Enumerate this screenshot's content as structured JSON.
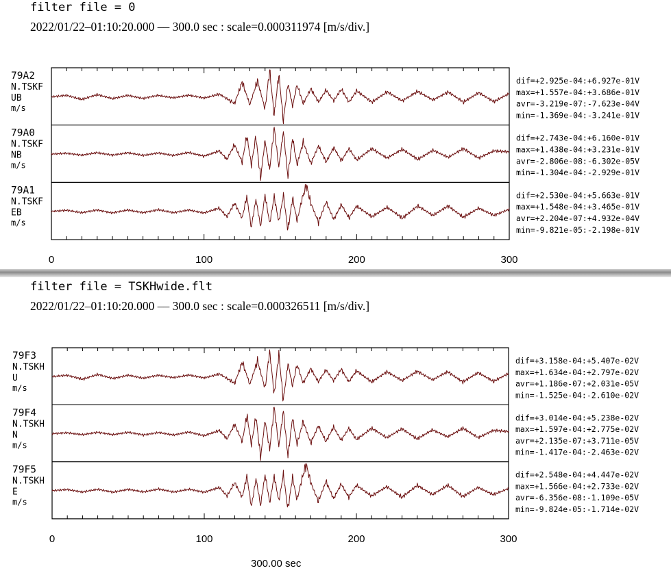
{
  "panels": [
    {
      "filter_text": "filter file = 0",
      "info_text": "2022/01/22–01:10:20.000 –– 300.0 sec : scale=0.000311974 [m/s/div.]"
    },
    {
      "filter_text": "filter file = TSKHwide.flt",
      "info_text": "2022/01/22–01:10:20.000 –– 300.0 sec : scale=0.000326511 [m/s/div.]"
    }
  ],
  "footer_text": "300.00 sec",
  "colors": {
    "trace": "#6b0f0f",
    "frame": "#000000"
  },
  "chart_data": [
    {
      "type": "line",
      "title": "filter file = 0",
      "xlim": [
        0,
        300
      ],
      "x_ticks": [
        "0",
        "100",
        "200",
        "300"
      ],
      "grid": false,
      "channels": [
        {
          "code": "79A2",
          "station": "N.TSKF",
          "component": "UB",
          "unit": "m/s",
          "stats": [
            "dif=+2.925e-04:+6.927e-01V",
            "max=+1.557e-04:+3.686e-01V",
            "avr=-3.219e-07:-7.623e-04V",
            "min=-1.369e-04:-3.241e-01V"
          ],
          "x": [
            0,
            10,
            20,
            30,
            40,
            50,
            60,
            70,
            80,
            90,
            100,
            110,
            120,
            125,
            130,
            135,
            140,
            143,
            146,
            149,
            152,
            155,
            158,
            161,
            165,
            170,
            175,
            180,
            185,
            190,
            195,
            200,
            210,
            220,
            230,
            240,
            250,
            260,
            270,
            280,
            290,
            300
          ],
          "y": [
            0,
            0.05,
            -0.1,
            0.08,
            -0.07,
            0.05,
            -0.06,
            0.05,
            -0.04,
            0.06,
            -0.05,
            0.1,
            -0.25,
            0.55,
            -0.3,
            0.6,
            -0.45,
            1.0,
            -0.7,
            0.85,
            -0.9,
            0.5,
            -0.35,
            0.45,
            -0.25,
            0.3,
            -0.2,
            0.25,
            -0.15,
            0.28,
            -0.2,
            0.22,
            -0.2,
            0.18,
            -0.15,
            0.2,
            -0.12,
            0.18,
            -0.2,
            0.15,
            -0.18,
            0.12
          ]
        },
        {
          "code": "79A0",
          "station": "N.TSKF",
          "component": "NB",
          "unit": "m/s",
          "stats": [
            "dif=+2.743e-04:+6.160e-01V",
            "max=+1.438e-04:+3.231e-01V",
            "avr=-2.806e-08:-6.302e-05V",
            "min=-1.304e-04:-2.929e-01V"
          ],
          "x": [
            0,
            10,
            20,
            30,
            40,
            50,
            60,
            70,
            80,
            90,
            100,
            110,
            115,
            120,
            125,
            128,
            131,
            134,
            137,
            140,
            143,
            146,
            149,
            152,
            155,
            158,
            161,
            165,
            170,
            175,
            180,
            185,
            190,
            195,
            200,
            210,
            220,
            230,
            240,
            250,
            260,
            270,
            280,
            290,
            300
          ],
          "y": [
            0,
            0.03,
            -0.04,
            0.05,
            -0.04,
            0.05,
            -0.05,
            0.04,
            -0.05,
            0.06,
            -0.08,
            0.12,
            -0.2,
            0.35,
            -0.3,
            0.7,
            -0.4,
            0.65,
            -0.9,
            0.5,
            -0.6,
            1.0,
            -0.5,
            0.85,
            -0.85,
            0.6,
            -0.4,
            0.45,
            -0.35,
            0.3,
            -0.3,
            0.25,
            -0.25,
            0.2,
            -0.22,
            0.2,
            -0.15,
            0.18,
            -0.2,
            0.14,
            -0.12,
            0.2,
            -0.15,
            0.12,
            0.08
          ]
        },
        {
          "code": "79A1",
          "station": "N.TSKF",
          "component": "EB",
          "unit": "m/s",
          "stats": [
            "dif=+2.530e-04:+5.663e-01V",
            "max=+1.548e-04:+3.465e-01V",
            "avr=+2.204e-07:+4.932e-04V",
            "min=-9.821e-05:-2.198e-01V"
          ],
          "x": [
            0,
            10,
            20,
            30,
            40,
            50,
            60,
            70,
            80,
            90,
            100,
            110,
            115,
            120,
            125,
            128,
            131,
            134,
            137,
            140,
            143,
            146,
            149,
            152,
            155,
            158,
            161,
            164,
            167,
            170,
            175,
            180,
            185,
            190,
            195,
            200,
            210,
            220,
            230,
            240,
            250,
            260,
            270,
            280,
            290,
            300
          ],
          "y": [
            0,
            0.04,
            -0.05,
            0.05,
            -0.06,
            0.05,
            -0.05,
            0.06,
            -0.05,
            0.05,
            -0.06,
            0.12,
            -0.2,
            0.3,
            -0.25,
            0.55,
            -0.6,
            0.45,
            -0.55,
            0.6,
            -0.45,
            0.55,
            -0.4,
            0.6,
            -0.7,
            0.5,
            -0.35,
            0.4,
            1.0,
            0.3,
            -0.4,
            0.35,
            -0.3,
            0.25,
            -0.25,
            0.2,
            -0.2,
            0.15,
            -0.25,
            0.2,
            -0.15,
            0.2,
            -0.22,
            0.12,
            -0.15,
            0.08
          ]
        }
      ]
    },
    {
      "type": "line",
      "title": "filter file = TSKHwide.flt",
      "xlim": [
        0,
        300
      ],
      "x_ticks": [
        "0",
        "100",
        "200",
        "300"
      ],
      "grid": false,
      "channels": [
        {
          "code": "79F3",
          "station": "N.TSKH",
          "component": "U",
          "unit": "m/s",
          "stats": [
            "dif=+3.158e-04:+5.407e-02V",
            "max=+1.634e-04:+2.797e-02V",
            "avr=+1.186e-07:+2.031e-05V",
            "min=-1.525e-04:-2.610e-02V"
          ],
          "x": [
            0,
            10,
            20,
            30,
            40,
            50,
            60,
            70,
            80,
            90,
            100,
            110,
            120,
            125,
            130,
            135,
            140,
            143,
            146,
            149,
            152,
            155,
            158,
            161,
            165,
            170,
            175,
            180,
            185,
            190,
            195,
            200,
            210,
            220,
            230,
            240,
            250,
            260,
            270,
            280,
            290,
            300
          ],
          "y": [
            0,
            0.05,
            -0.1,
            0.08,
            -0.07,
            0.05,
            -0.06,
            0.05,
            -0.04,
            0.06,
            -0.05,
            0.1,
            -0.25,
            0.55,
            -0.3,
            0.6,
            -0.45,
            1.0,
            -0.7,
            0.85,
            -0.9,
            0.5,
            -0.35,
            0.45,
            -0.25,
            0.3,
            -0.2,
            0.25,
            -0.15,
            0.28,
            -0.2,
            0.22,
            -0.2,
            0.18,
            -0.15,
            0.2,
            -0.12,
            0.18,
            -0.2,
            0.15,
            -0.18,
            0.12
          ]
        },
        {
          "code": "79F4",
          "station": "N.TSKH",
          "component": "N",
          "unit": "m/s",
          "stats": [
            "dif=+3.014e-04:+5.238e-02V",
            "max=+1.597e-04:+2.775e-02V",
            "avr=+2.135e-07:+3.711e-05V",
            "min=-1.417e-04:-2.463e-02V"
          ],
          "x": [
            0,
            10,
            20,
            30,
            40,
            50,
            60,
            70,
            80,
            90,
            100,
            110,
            115,
            120,
            125,
            128,
            131,
            134,
            137,
            140,
            143,
            146,
            149,
            152,
            155,
            158,
            161,
            165,
            170,
            175,
            180,
            185,
            190,
            195,
            200,
            210,
            220,
            230,
            240,
            250,
            260,
            270,
            280,
            290,
            300
          ],
          "y": [
            0,
            0.03,
            -0.04,
            0.05,
            -0.04,
            0.05,
            -0.05,
            0.04,
            -0.05,
            0.06,
            -0.08,
            0.12,
            -0.2,
            0.35,
            -0.3,
            0.7,
            -0.4,
            0.65,
            -0.9,
            0.5,
            -0.6,
            1.0,
            -0.5,
            0.85,
            -0.85,
            0.6,
            -0.4,
            0.45,
            -0.35,
            0.3,
            -0.3,
            0.25,
            -0.25,
            0.2,
            -0.22,
            0.2,
            -0.15,
            0.18,
            -0.2,
            0.14,
            -0.12,
            0.2,
            -0.15,
            0.12,
            0.08
          ]
        },
        {
          "code": "79F5",
          "station": "N.TSKH",
          "component": "E",
          "unit": "m/s",
          "stats": [
            "dif=+2.548e-04:+4.447e-02V",
            "max=+1.566e-04:+2.733e-02V",
            "avr=-6.356e-08:-1.109e-05V",
            "min=-9.824e-05:-1.714e-02V"
          ],
          "x": [
            0,
            10,
            20,
            30,
            40,
            50,
            60,
            70,
            80,
            90,
            100,
            110,
            115,
            120,
            125,
            128,
            131,
            134,
            137,
            140,
            143,
            146,
            149,
            152,
            155,
            158,
            161,
            164,
            167,
            170,
            175,
            180,
            185,
            190,
            195,
            200,
            210,
            220,
            230,
            240,
            250,
            260,
            270,
            280,
            290,
            300
          ],
          "y": [
            0,
            0.04,
            -0.05,
            0.05,
            -0.06,
            0.05,
            -0.05,
            0.06,
            -0.05,
            0.05,
            -0.06,
            0.12,
            -0.2,
            0.3,
            -0.25,
            0.55,
            -0.6,
            0.45,
            -0.55,
            0.6,
            -0.45,
            0.55,
            -0.4,
            0.6,
            -0.7,
            0.5,
            -0.35,
            0.4,
            1.0,
            0.3,
            -0.4,
            0.35,
            -0.3,
            0.25,
            -0.25,
            0.2,
            -0.2,
            0.15,
            -0.25,
            0.2,
            -0.15,
            0.2,
            -0.22,
            0.12,
            -0.15,
            0.08
          ]
        }
      ]
    }
  ]
}
